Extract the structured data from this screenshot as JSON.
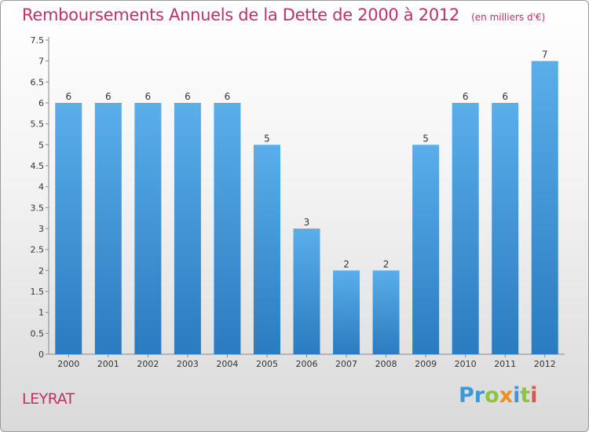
{
  "page": {
    "commune": "LEYRAT",
    "logo": {
      "letters": [
        {
          "char": "P",
          "color": "#3a9ad9"
        },
        {
          "char": "r",
          "color": "#3a9ad9"
        },
        {
          "char": "o",
          "color": "#8cc63f"
        },
        {
          "char": "x",
          "color": "#f28c1e"
        },
        {
          "char": "i",
          "color": "#3a9ad9"
        },
        {
          "char": "t",
          "color": "#8cc63f"
        },
        {
          "char": "i",
          "color": "#d9534f"
        }
      ]
    }
  },
  "chart_data": {
    "type": "bar",
    "title": "Remboursements Annuels de la Dette de 2000 à 2012",
    "subtitle": "(en milliers d'€)",
    "xlabel": "",
    "ylabel": "",
    "categories": [
      "2000",
      "2001",
      "2002",
      "2003",
      "2004",
      "2005",
      "2006",
      "2007",
      "2008",
      "2009",
      "2010",
      "2011",
      "2012"
    ],
    "values": [
      6,
      6,
      6,
      6,
      6,
      5,
      3,
      2,
      2,
      5,
      6,
      6,
      7
    ],
    "ylim": [
      0,
      7.5
    ],
    "yticks": [
      "0",
      "0.5",
      "1",
      "1.5",
      "2",
      "2.5",
      "3",
      "3.5",
      "4",
      "4.5",
      "5",
      "5.5",
      "6",
      "6.5",
      "7",
      "7.5"
    ],
    "grid": false,
    "legend": "none",
    "bar_color": "#4a9ee0",
    "title_color": "#c0306a"
  }
}
